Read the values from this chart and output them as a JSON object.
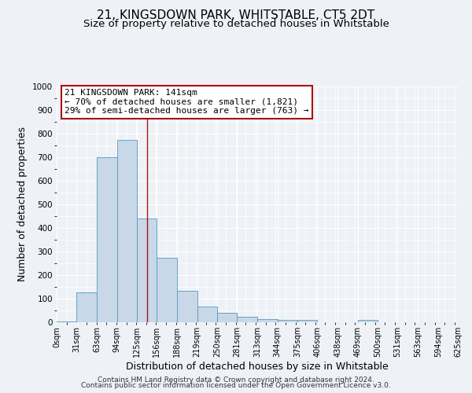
{
  "title": "21, KINGSDOWN PARK, WHITSTABLE, CT5 2DT",
  "subtitle": "Size of property relative to detached houses in Whitstable",
  "xlabel": "Distribution of detached houses by size in Whitstable",
  "ylabel": "Number of detached properties",
  "bar_edges": [
    0,
    31,
    63,
    94,
    125,
    156,
    188,
    219,
    250,
    281,
    313,
    344,
    375,
    406,
    438,
    469,
    500,
    531,
    563,
    594,
    625
  ],
  "bar_heights": [
    5,
    128,
    700,
    775,
    440,
    275,
    133,
    68,
    40,
    25,
    15,
    10,
    10,
    0,
    0,
    10,
    0,
    0,
    0,
    0
  ],
  "bar_color": "#c8d8e8",
  "bar_edge_color": "#5599bb",
  "property_sqm": 141,
  "vline_color": "#aa1111",
  "annotation_line1": "21 KINGSDOWN PARK: 141sqm",
  "annotation_line2": "← 70% of detached houses are smaller (1,821)",
  "annotation_line3": "29% of semi-detached houses are larger (763) →",
  "annotation_box_color": "#ffffff",
  "annotation_box_edge_color": "#aa1111",
  "ylim": [
    0,
    1000
  ],
  "yticks": [
    0,
    100,
    200,
    300,
    400,
    500,
    600,
    700,
    800,
    900,
    1000
  ],
  "background_color": "#eef2f7",
  "grid_color": "#ffffff",
  "footer_line1": "Contains HM Land Registry data © Crown copyright and database right 2024.",
  "footer_line2": "Contains public sector information licensed under the Open Government Licence v3.0.",
  "title_fontsize": 11,
  "subtitle_fontsize": 9.5,
  "xlabel_fontsize": 9,
  "ylabel_fontsize": 9,
  "tick_label_fontsize": 7,
  "annotation_fontsize": 8,
  "footer_fontsize": 6.5
}
